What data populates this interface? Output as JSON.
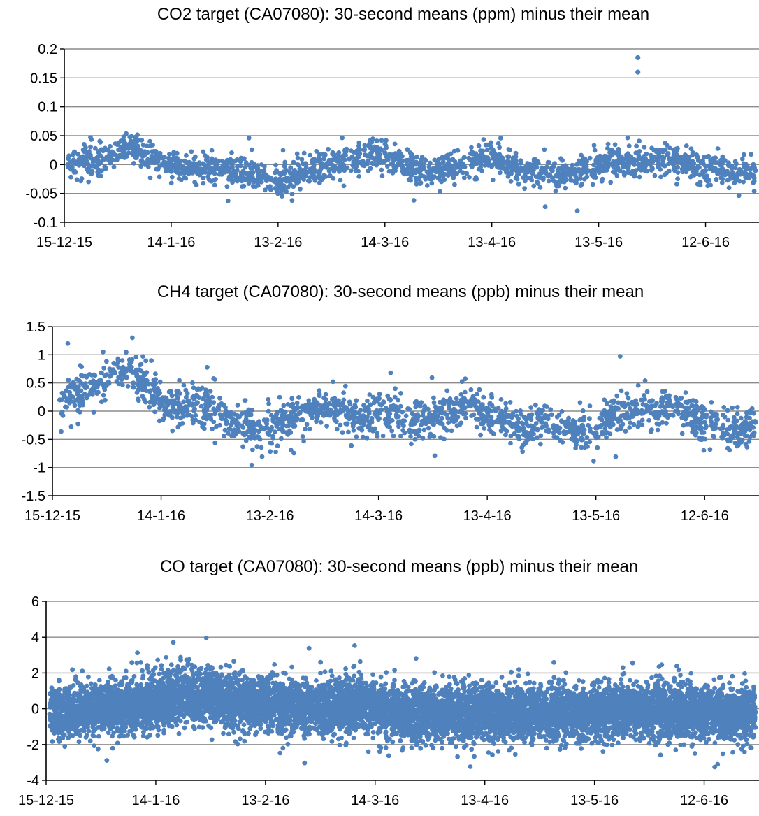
{
  "chart_data": [
    {
      "type": "scatter",
      "title": "CO2 target (CA07080): 30-second means (ppm) minus their mean",
      "xlabel": "",
      "ylabel": "",
      "xlim": [
        "2015-12-15",
        "2016-06-27"
      ],
      "ylim": [
        -0.1,
        0.2
      ],
      "yticks": [
        0.2,
        0.15,
        0.1,
        0.05,
        0,
        -0.05,
        -0.1
      ],
      "ytick_labels": [
        "0.2",
        "0.15",
        "0.1",
        "0.05",
        "0",
        "-0.05",
        "-0.1"
      ],
      "xtick_dates": [
        "2015-12-15",
        "2016-01-14",
        "2016-02-13",
        "2016-03-14",
        "2016-04-13",
        "2016-05-13",
        "2016-06-12"
      ],
      "xtick_labels": [
        "15-12-15",
        "14-1-16",
        "13-2-16",
        "14-3-16",
        "13-4-16",
        "13-5-16",
        "12-6-16"
      ],
      "grid": true,
      "series": [
        {
          "color": "#4f81bd",
          "points": [
            {
              "x": "2015-12-16",
              "y": 0.0
            },
            {
              "x": "2015-12-21",
              "y": 0.005
            },
            {
              "x": "2015-12-26",
              "y": 0.01
            },
            {
              "x": "2015-12-31",
              "y": 0.03
            },
            {
              "x": "2016-01-05",
              "y": 0.025
            },
            {
              "x": "2016-01-10",
              "y": 0.01
            },
            {
              "x": "2016-01-14",
              "y": -0.005
            },
            {
              "x": "2016-01-19",
              "y": -0.01
            },
            {
              "x": "2016-01-24",
              "y": -0.005
            },
            {
              "x": "2016-01-29",
              "y": -0.01
            },
            {
              "x": "2016-02-03",
              "y": -0.015
            },
            {
              "x": "2016-02-08",
              "y": -0.025
            },
            {
              "x": "2016-02-13",
              "y": -0.03
            },
            {
              "x": "2016-02-18",
              "y": -0.02
            },
            {
              "x": "2016-02-23",
              "y": -0.01
            },
            {
              "x": "2016-02-28",
              "y": 0.0
            },
            {
              "x": "2016-03-04",
              "y": 0.01
            },
            {
              "x": "2016-03-09",
              "y": 0.015
            },
            {
              "x": "2016-03-14",
              "y": 0.02
            },
            {
              "x": "2016-03-19",
              "y": -0.005
            },
            {
              "x": "2016-03-24",
              "y": -0.01
            },
            {
              "x": "2016-03-29",
              "y": -0.01
            },
            {
              "x": "2016-04-03",
              "y": 0.0
            },
            {
              "x": "2016-04-08",
              "y": 0.01
            },
            {
              "x": "2016-04-13",
              "y": 0.02
            },
            {
              "x": "2016-04-18",
              "y": 0.0
            },
            {
              "x": "2016-04-23",
              "y": -0.01
            },
            {
              "x": "2016-04-28",
              "y": -0.01
            },
            {
              "x": "2016-05-03",
              "y": -0.02
            },
            {
              "x": "2016-05-08",
              "y": -0.01
            },
            {
              "x": "2016-05-13",
              "y": 0.0
            },
            {
              "x": "2016-05-18",
              "y": 0.005
            },
            {
              "x": "2016-05-23",
              "y": 0.0
            },
            {
              "x": "2016-05-28",
              "y": 0.005
            },
            {
              "x": "2016-06-02",
              "y": 0.01
            },
            {
              "x": "2016-06-07",
              "y": 0.0
            },
            {
              "x": "2016-06-12",
              "y": -0.01
            },
            {
              "x": "2016-06-17",
              "y": -0.01
            },
            {
              "x": "2016-06-22",
              "y": -0.015
            },
            {
              "x": "2016-06-26",
              "y": -0.01
            },
            {
              "x": "2016-05-24",
              "y": 0.185
            },
            {
              "x": "2016-05-24",
              "y": 0.16
            }
          ]
        }
      ]
    },
    {
      "type": "scatter",
      "title": "CH4 target (CA07080): 30-second means (ppb) minus their mean",
      "xlabel": "",
      "ylabel": "",
      "xlim": [
        "2015-12-15",
        "2016-06-27"
      ],
      "ylim": [
        -1.5,
        1.5
      ],
      "yticks": [
        1.5,
        1,
        0.5,
        0,
        -0.5,
        -1,
        -1.5
      ],
      "ytick_labels": [
        "1.5",
        "1",
        "0.5",
        "0",
        "-0.5",
        "-1",
        "-1.5"
      ],
      "xtick_dates": [
        "2015-12-15",
        "2016-01-14",
        "2016-02-13",
        "2016-03-14",
        "2016-04-13",
        "2016-05-13",
        "2016-06-12"
      ],
      "xtick_labels": [
        "15-12-15",
        "14-1-16",
        "13-2-16",
        "14-3-16",
        "13-4-16",
        "13-5-16",
        "12-6-16"
      ],
      "grid": true,
      "series": [
        {
          "color": "#4f81bd",
          "points": [
            {
              "x": "2015-12-17",
              "y": 0.2
            },
            {
              "x": "2015-12-22",
              "y": 0.3
            },
            {
              "x": "2015-12-27",
              "y": 0.5
            },
            {
              "x": "2016-01-01",
              "y": 0.7
            },
            {
              "x": "2016-01-05",
              "y": 0.75
            },
            {
              "x": "2016-01-09",
              "y": 0.5
            },
            {
              "x": "2016-01-14",
              "y": 0.2
            },
            {
              "x": "2016-01-19",
              "y": 0.1
            },
            {
              "x": "2016-01-24",
              "y": 0.15
            },
            {
              "x": "2016-01-29",
              "y": 0.0
            },
            {
              "x": "2016-02-03",
              "y": -0.2
            },
            {
              "x": "2016-02-08",
              "y": -0.3
            },
            {
              "x": "2016-02-13",
              "y": -0.35
            },
            {
              "x": "2016-02-18",
              "y": -0.1
            },
            {
              "x": "2016-02-23",
              "y": 0.0
            },
            {
              "x": "2016-02-28",
              "y": 0.05
            },
            {
              "x": "2016-03-04",
              "y": 0.0
            },
            {
              "x": "2016-03-09",
              "y": -0.1
            },
            {
              "x": "2016-03-14",
              "y": 0.0
            },
            {
              "x": "2016-03-19",
              "y": -0.1
            },
            {
              "x": "2016-03-24",
              "y": -0.2
            },
            {
              "x": "2016-03-29",
              "y": -0.1
            },
            {
              "x": "2016-04-03",
              "y": 0.0
            },
            {
              "x": "2016-04-08",
              "y": 0.1
            },
            {
              "x": "2016-04-13",
              "y": 0.0
            },
            {
              "x": "2016-04-18",
              "y": -0.2
            },
            {
              "x": "2016-04-23",
              "y": -0.3
            },
            {
              "x": "2016-04-28",
              "y": -0.2
            },
            {
              "x": "2016-05-03",
              "y": -0.3
            },
            {
              "x": "2016-05-08",
              "y": -0.35
            },
            {
              "x": "2016-05-13",
              "y": -0.3
            },
            {
              "x": "2016-05-18",
              "y": -0.1
            },
            {
              "x": "2016-05-23",
              "y": 0.0
            },
            {
              "x": "2016-05-28",
              "y": 0.05
            },
            {
              "x": "2016-06-02",
              "y": 0.1
            },
            {
              "x": "2016-06-07",
              "y": 0.0
            },
            {
              "x": "2016-06-12",
              "y": -0.2
            },
            {
              "x": "2016-06-17",
              "y": -0.3
            },
            {
              "x": "2016-06-22",
              "y": -0.4
            },
            {
              "x": "2016-06-26",
              "y": -0.2
            }
          ]
        }
      ]
    },
    {
      "type": "scatter",
      "title": "CO target (CA07080): 30-second means (ppb) minus their mean",
      "xlabel": "",
      "ylabel": "",
      "xlim": [
        "2015-12-15",
        "2016-06-27"
      ],
      "ylim": [
        -4,
        6
      ],
      "yticks": [
        6,
        4,
        2,
        0,
        -2,
        -4
      ],
      "ytick_labels": [
        "6",
        "4",
        "2",
        "0",
        "-2",
        "-4"
      ],
      "xtick_dates": [
        "2015-12-15",
        "2016-01-14",
        "2016-02-13",
        "2016-03-14",
        "2016-04-13",
        "2016-05-13",
        "2016-06-12"
      ],
      "xtick_labels": [
        "15-12-15",
        "14-1-16",
        "13-2-16",
        "14-3-16",
        "13-4-16",
        "13-5-16",
        "12-6-16"
      ],
      "grid": true,
      "series": [
        {
          "color": "#4f81bd",
          "points": [
            {
              "x": "2015-12-16",
              "y": -0.3
            },
            {
              "x": "2015-12-21",
              "y": -0.2
            },
            {
              "x": "2015-12-26",
              "y": -0.1
            },
            {
              "x": "2015-12-31",
              "y": 0.0
            },
            {
              "x": "2016-01-05",
              "y": 0.1
            },
            {
              "x": "2016-01-10",
              "y": 0.3
            },
            {
              "x": "2016-01-14",
              "y": 0.4
            },
            {
              "x": "2016-01-19",
              "y": 0.6
            },
            {
              "x": "2016-01-24",
              "y": 0.7
            },
            {
              "x": "2016-01-29",
              "y": 0.6
            },
            {
              "x": "2016-02-03",
              "y": 0.5
            },
            {
              "x": "2016-02-08",
              "y": 0.4
            },
            {
              "x": "2016-02-13",
              "y": 0.3
            },
            {
              "x": "2016-02-18",
              "y": 0.2
            },
            {
              "x": "2016-02-23",
              "y": 0.1
            },
            {
              "x": "2016-02-28",
              "y": 0.0
            },
            {
              "x": "2016-03-04",
              "y": 0.1
            },
            {
              "x": "2016-03-09",
              "y": 0.2
            },
            {
              "x": "2016-03-14",
              "y": 0.0
            },
            {
              "x": "2016-03-19",
              "y": -0.2
            },
            {
              "x": "2016-03-24",
              "y": -0.3
            },
            {
              "x": "2016-03-29",
              "y": -0.3
            },
            {
              "x": "2016-04-03",
              "y": -0.2
            },
            {
              "x": "2016-04-08",
              "y": -0.3
            },
            {
              "x": "2016-04-13",
              "y": -0.2
            },
            {
              "x": "2016-04-18",
              "y": -0.3
            },
            {
              "x": "2016-04-23",
              "y": -0.2
            },
            {
              "x": "2016-04-28",
              "y": -0.3
            },
            {
              "x": "2016-05-03",
              "y": -0.2
            },
            {
              "x": "2016-05-08",
              "y": -0.3
            },
            {
              "x": "2016-05-13",
              "y": -0.2
            },
            {
              "x": "2016-05-18",
              "y": -0.2
            },
            {
              "x": "2016-05-23",
              "y": -0.1
            },
            {
              "x": "2016-05-28",
              "y": -0.2
            },
            {
              "x": "2016-06-02",
              "y": -0.1
            },
            {
              "x": "2016-06-07",
              "y": -0.2
            },
            {
              "x": "2016-06-12",
              "y": -0.2
            },
            {
              "x": "2016-06-17",
              "y": -0.3
            },
            {
              "x": "2016-06-22",
              "y": -0.3
            },
            {
              "x": "2016-06-26",
              "y": -0.2
            }
          ]
        }
      ]
    }
  ]
}
